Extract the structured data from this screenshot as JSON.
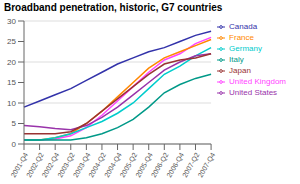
{
  "chart_data": {
    "type": "line",
    "title": "Broadband penetration, historic, G7 countries",
    "categories": [
      "2001-Q4",
      "2002-Q2",
      "2002-Q4",
      "2003-Q2",
      "2003-Q4",
      "2004-Q2",
      "2004-Q4",
      "2005-Q2",
      "2005-Q4",
      "2006-Q2",
      "2006-Q4",
      "2007-Q2",
      "2007-Q4"
    ],
    "series": [
      {
        "name": "Canada",
        "color": "#3333aa",
        "values": [
          9.0,
          10.5,
          12.0,
          13.5,
          15.5,
          17.5,
          19.5,
          21.0,
          22.5,
          23.5,
          25.0,
          26.5,
          27.5
        ]
      },
      {
        "name": "United Kingdom",
        "color": "#ff44ff",
        "values": [
          1.0,
          1.0,
          1.2,
          2.0,
          4.0,
          7.0,
          10.5,
          14.0,
          17.5,
          20.5,
          22.0,
          24.5,
          26.0
        ]
      },
      {
        "name": "France",
        "color": "#ff8800",
        "values": [
          1.0,
          1.0,
          1.5,
          2.5,
          5.0,
          8.0,
          11.5,
          15.0,
          18.5,
          21.0,
          22.5,
          24.0,
          25.5
        ]
      },
      {
        "name": "Germany",
        "color": "#00cccc",
        "values": [
          1.0,
          1.0,
          1.5,
          2.5,
          4.0,
          5.5,
          7.5,
          10.0,
          13.5,
          17.0,
          19.0,
          21.5,
          23.5
        ]
      },
      {
        "name": "United States",
        "color": "#9933aa",
        "values": [
          4.5,
          4.2,
          3.8,
          3.5,
          4.5,
          6.5,
          9.0,
          12.0,
          15.0,
          18.0,
          20.0,
          21.5,
          22.0
        ]
      },
      {
        "name": "Japan",
        "color": "#993333",
        "values": [
          2.5,
          2.5,
          2.5,
          3.0,
          5.0,
          8.0,
          11.0,
          14.0,
          17.0,
          19.5,
          20.5,
          21.0,
          22.0
        ]
      },
      {
        "name": "Italy",
        "color": "#009988",
        "values": [
          1.0,
          1.0,
          1.0,
          1.0,
          1.5,
          2.5,
          4.0,
          6.0,
          9.0,
          12.5,
          14.5,
          16.0,
          17.0
        ]
      }
    ],
    "ylim": [
      0,
      30
    ],
    "yticks": [
      0,
      5,
      10,
      15,
      20,
      25,
      30
    ],
    "grid": true,
    "legend": "right"
  }
}
